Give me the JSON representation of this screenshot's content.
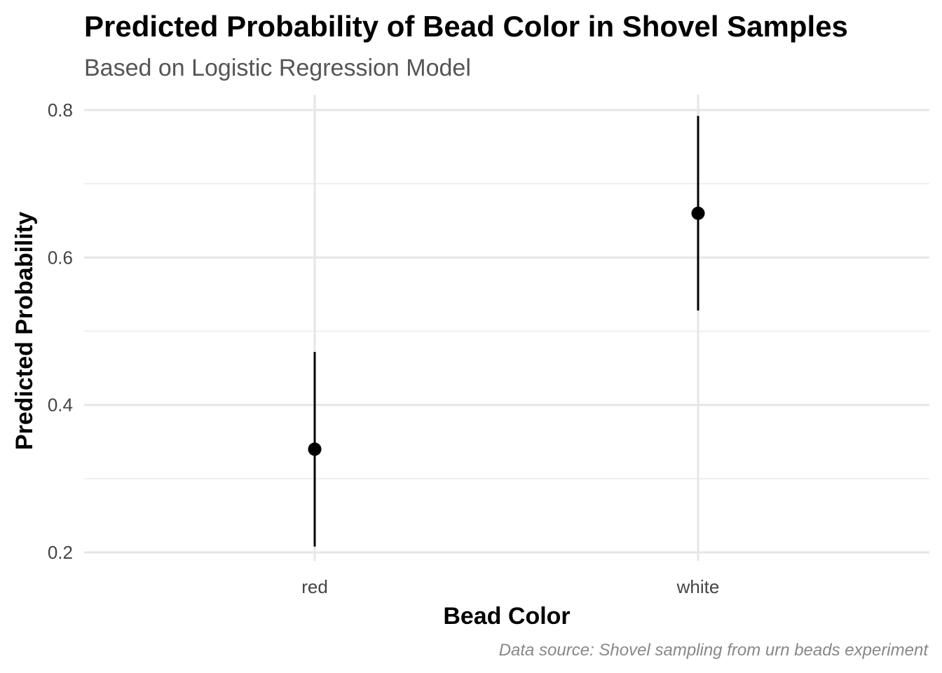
{
  "chart_data": {
    "type": "scatter",
    "title": "Predicted Probability of Bead Color in Shovel Samples",
    "subtitle": "Based on Logistic Regression Model",
    "xlabel": "Bead Color",
    "ylabel": "Predicted Probability",
    "caption": "Data source: Shovel sampling from urn beads experiment",
    "categories": [
      "red",
      "white"
    ],
    "points": [
      {
        "category": "red",
        "estimate": 0.34,
        "lower": 0.208,
        "upper": 0.472
      },
      {
        "category": "white",
        "estimate": 0.66,
        "lower": 0.528,
        "upper": 0.792
      }
    ],
    "ylim": [
      0.2,
      0.8
    ],
    "yticks": [
      0.2,
      0.4,
      0.6,
      0.8
    ],
    "ytick_labels": [
      "0.2",
      "0.4",
      "0.6",
      "0.8"
    ],
    "grid": true,
    "legend": "none",
    "point_color": "#000000"
  }
}
